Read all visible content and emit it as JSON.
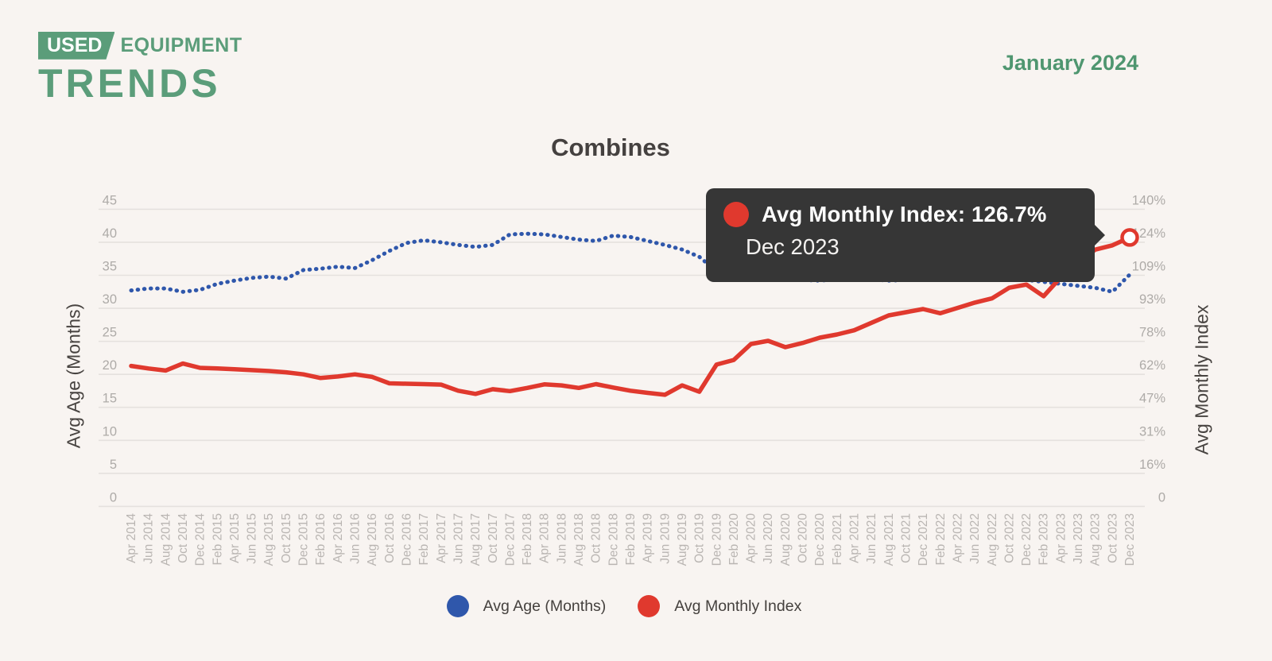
{
  "header": {
    "logo_badge": "USED",
    "logo_rest": "EQUIPMENT",
    "logo_line2": "TRENDS",
    "date": "January 2024"
  },
  "chart": {
    "title": "Combines",
    "left_axis": {
      "title": "Avg Age (Months)",
      "ticks": [
        "45",
        "40",
        "35",
        "30",
        "25",
        "20",
        "15",
        "10",
        "5",
        "0"
      ]
    },
    "right_axis": {
      "title": "Avg Monthly Index",
      "ticks": [
        "140%",
        "124%",
        "109%",
        "93%",
        "78%",
        "62%",
        "47%",
        "31%",
        "16%",
        "0"
      ]
    },
    "legend": [
      {
        "label": "Avg Age (Months)",
        "color": "#2f57ab"
      },
      {
        "label": "Avg Monthly Index",
        "color": "#e0392e"
      }
    ],
    "tooltip": {
      "text": "Avg Monthly Index: 126.7%",
      "date": "Dec 2023",
      "dot_color": "#e0392e"
    }
  },
  "colors": {
    "background": "#f8f4f1",
    "brand_green": "#5b9d7a",
    "date_green": "#4f9670",
    "gridline": "#e5e1de",
    "tooltip_bg": "#363636",
    "series_blue": "#2f57ab",
    "series_red": "#e0392e"
  },
  "chart_data": {
    "type": "line",
    "title": "Combines",
    "xlabel": "",
    "ylabel_left": "Avg Age (Months)",
    "ylabel_right": "Avg Monthly Index",
    "left_ylim": [
      0,
      45
    ],
    "right_ylim": [
      0,
      140
    ],
    "grid": "horizontal",
    "legend_position": "bottom",
    "x": [
      "Apr 2014",
      "Jun 2014",
      "Aug 2014",
      "Oct 2014",
      "Dec 2014",
      "Feb 2015",
      "Apr 2015",
      "Jun 2015",
      "Aug 2015",
      "Oct 2015",
      "Dec 2015",
      "Feb 2016",
      "Apr 2016",
      "Jun 2016",
      "Aug 2016",
      "Oct 2016",
      "Dec 2016",
      "Feb 2017",
      "Apr 2017",
      "Jun 2017",
      "Aug 2017",
      "Oct 2017",
      "Dec 2017",
      "Feb 2018",
      "Apr 2018",
      "Jun 2018",
      "Aug 2018",
      "Oct 2018",
      "Dec 2018",
      "Feb 2019",
      "Apr 2019",
      "Jun 2019",
      "Aug 2019",
      "Oct 2019",
      "Dec 2019",
      "Feb 2020",
      "Apr 2020",
      "Jun 2020",
      "Aug 2020",
      "Oct 2020",
      "Dec 2020",
      "Feb 2021",
      "Apr 2021",
      "Jun 2021",
      "Aug 2021",
      "Oct 2021",
      "Dec 2021",
      "Feb 2022",
      "Apr 2022",
      "Jun 2022",
      "Aug 2022",
      "Oct 2022",
      "Dec 2022",
      "Feb 2023",
      "Apr 2023",
      "Jun 2023",
      "Aug 2023",
      "Oct 2023",
      "Dec 2023"
    ],
    "series": [
      {
        "name": "Avg Age (Months)",
        "axis": "left",
        "style": "dotted",
        "color": "#2f57ab",
        "values": [
          32.7,
          33.0,
          33.0,
          32.5,
          32.8,
          33.7,
          34.2,
          34.6,
          34.8,
          34.5,
          35.8,
          36.0,
          36.3,
          36.1,
          37.3,
          38.7,
          39.9,
          40.3,
          40.0,
          39.6,
          39.3,
          39.6,
          41.2,
          41.3,
          41.2,
          40.8,
          40.4,
          40.2,
          41.0,
          40.8,
          40.2,
          39.6,
          38.9,
          37.8,
          35.6,
          34.9,
          34.7,
          34.5,
          34.4,
          34.3,
          34.2,
          34.4,
          34.6,
          34.4,
          34.2,
          34.3,
          34.5,
          34.7,
          34.9,
          34.6,
          34.4,
          34.6,
          34.3,
          34.0,
          33.7,
          33.4,
          33.1,
          32.5,
          35.1
        ]
      },
      {
        "name": "Avg Monthly Index",
        "axis": "right",
        "style": "solid",
        "color": "#e0392e",
        "values": [
          66.2,
          65.0,
          64.0,
          67.3,
          65.3,
          65.0,
          64.6,
          64.2,
          63.8,
          63.2,
          62.2,
          60.5,
          61.2,
          62.2,
          61.0,
          58.0,
          57.8,
          57.6,
          57.4,
          54.5,
          53.0,
          55.2,
          54.3,
          55.8,
          57.5,
          57.0,
          55.8,
          57.6,
          56.0,
          54.5,
          53.5,
          52.6,
          57.0,
          54.0,
          66.8,
          69.0,
          76.5,
          78.0,
          75.0,
          77.0,
          79.5,
          81.0,
          83.0,
          86.5,
          90.0,
          91.5,
          93.0,
          91.0,
          93.5,
          96.0,
          98.0,
          103.0,
          104.5,
          99.0,
          108.0,
          115.0,
          121.0,
          123.0,
          126.7
        ]
      }
    ],
    "highlight": {
      "series": "Avg Monthly Index",
      "x": "Dec 2023",
      "value": 126.7
    }
  }
}
